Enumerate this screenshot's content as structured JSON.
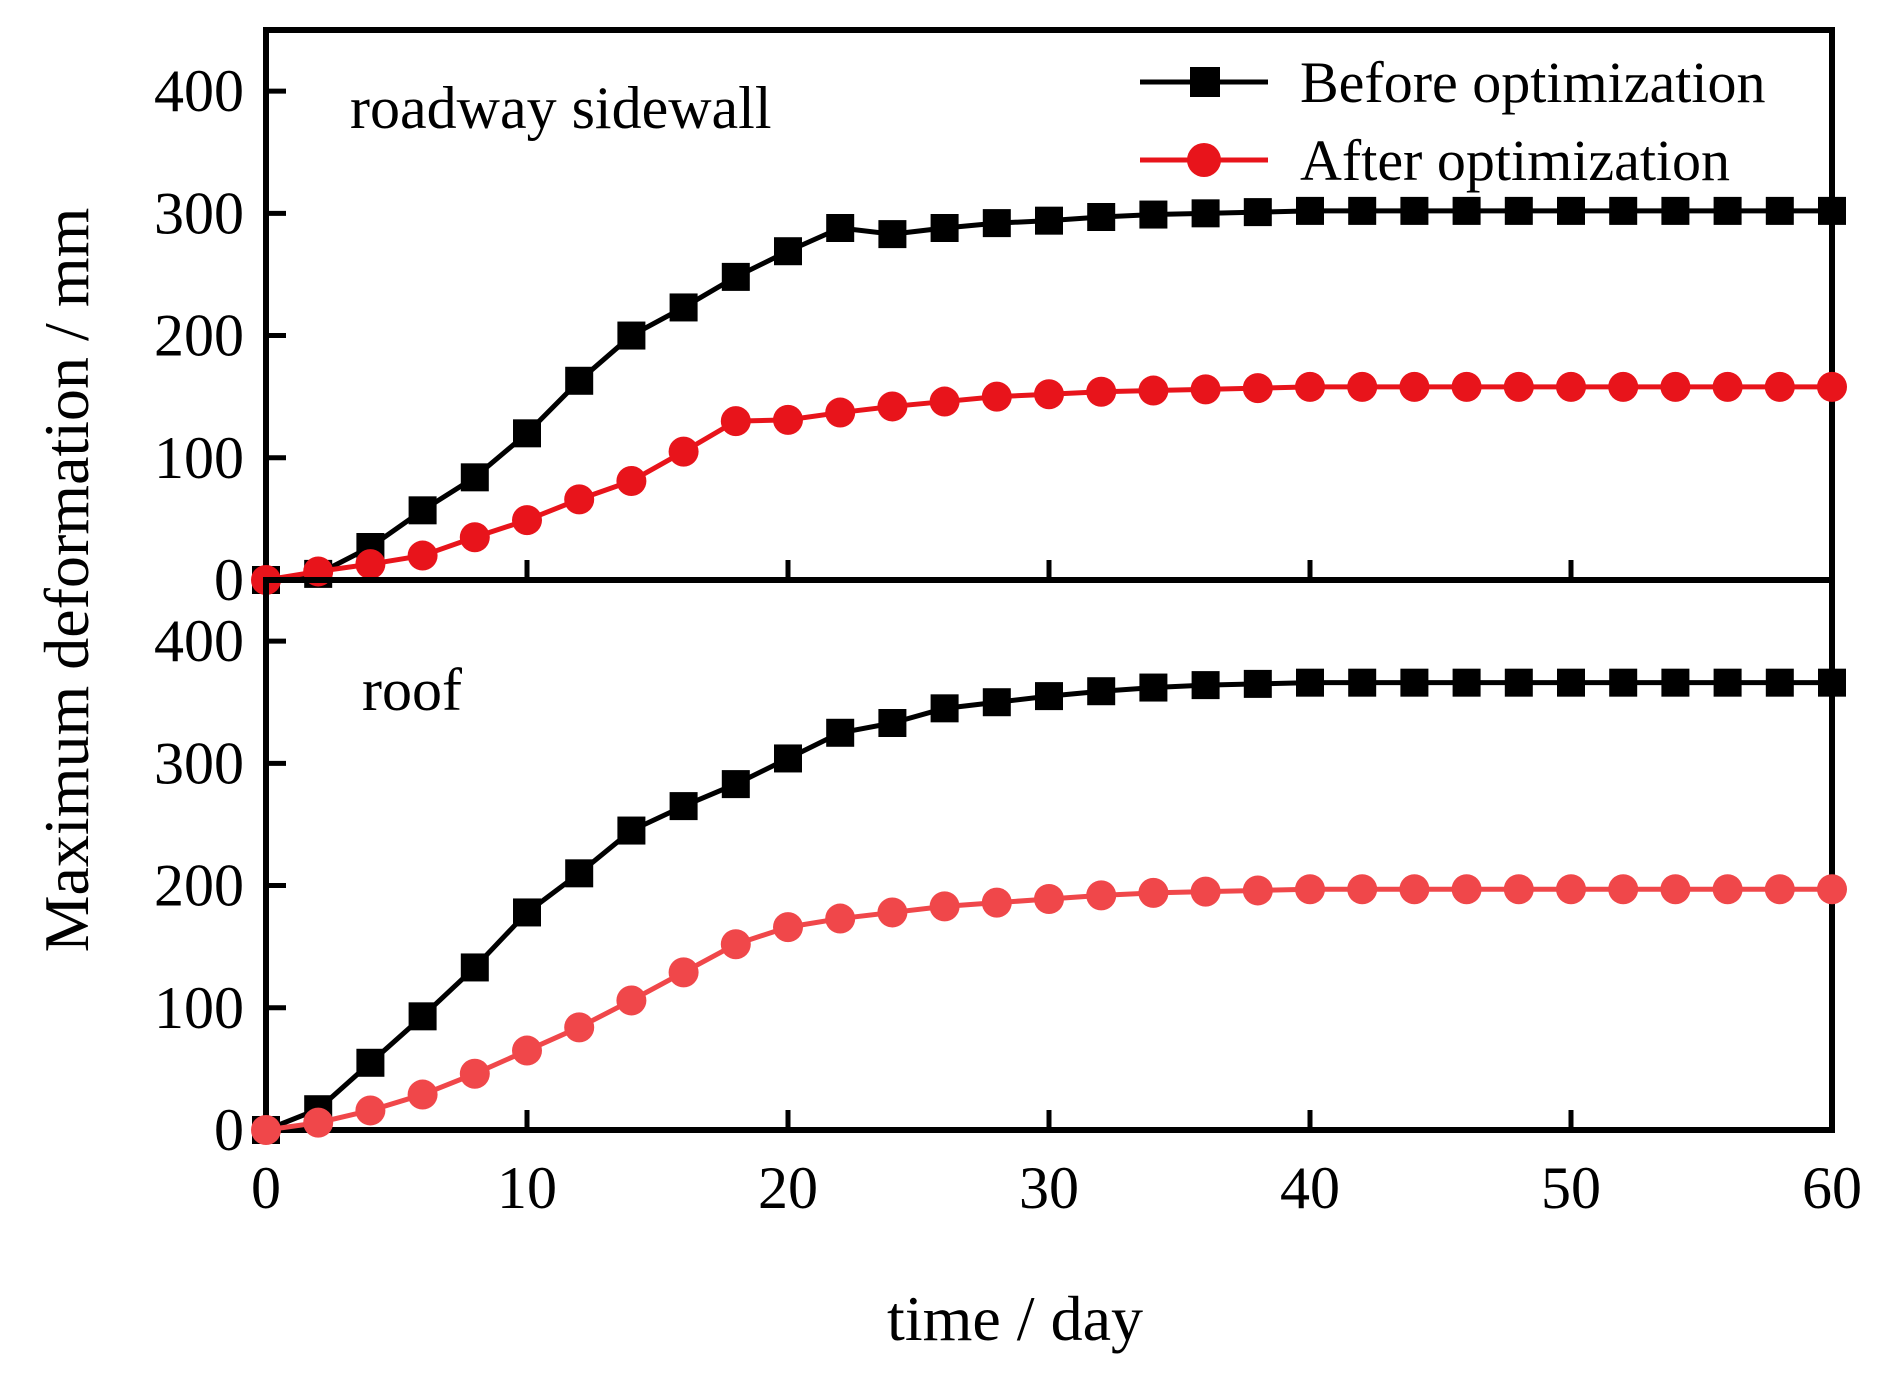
{
  "chart_data": {
    "type": "line",
    "xlabel": "time / day",
    "ylabel": "Maximum deformation / mm",
    "xlim": [
      0,
      60
    ],
    "xticks": [
      0,
      10,
      20,
      30,
      40,
      50,
      60
    ],
    "legend": {
      "placement": "top-right",
      "entries": [
        "Before optimization",
        "After optimization"
      ]
    },
    "colors": {
      "before": "#000000",
      "after_sidewall": "#e8141b",
      "after_roof": "#f0474a"
    },
    "panels": [
      {
        "label": "roadway sidewall",
        "ylim": [
          0,
          450
        ],
        "yticks": [
          0,
          100,
          200,
          300,
          400
        ],
        "x": [
          0,
          2,
          4,
          6,
          8,
          10,
          12,
          14,
          16,
          18,
          20,
          22,
          24,
          26,
          28,
          30,
          32,
          34,
          36,
          38,
          40,
          42,
          44,
          46,
          48,
          50,
          52,
          54,
          56,
          58,
          60
        ],
        "series": [
          {
            "name": "Before optimization",
            "values": [
              0,
              5,
              27,
              57,
              84,
              120,
              163,
              200,
              223,
              248,
              269,
              288,
              283,
              288,
              292,
              294,
              297,
              299,
              300,
              301,
              302,
              302,
              302,
              302,
              302,
              302,
              302,
              302,
              302,
              302,
              302
            ]
          },
          {
            "name": "After optimization",
            "values": [
              0,
              7,
              13,
              20,
              35,
              49,
              66,
              81,
              105,
              130,
              131,
              137,
              142,
              146,
              150,
              152,
              154,
              155,
              156,
              157,
              158,
              158,
              158,
              158,
              158,
              158,
              158,
              158,
              158,
              158,
              158
            ]
          }
        ]
      },
      {
        "label": "roof",
        "ylim": [
          0,
          450
        ],
        "yticks": [
          0,
          100,
          200,
          300,
          400
        ],
        "x": [
          0,
          2,
          4,
          6,
          8,
          10,
          12,
          14,
          16,
          18,
          20,
          22,
          24,
          26,
          28,
          30,
          32,
          34,
          36,
          38,
          40,
          42,
          44,
          46,
          48,
          50,
          52,
          54,
          56,
          58,
          60
        ],
        "series": [
          {
            "name": "Before optimization",
            "values": [
              0,
              17,
              55,
              93,
              133,
              178,
              210,
              245,
              265,
              283,
              304,
              325,
              333,
              345,
              350,
              355,
              359,
              362,
              364,
              365,
              366,
              366,
              366,
              366,
              366,
              366,
              366,
              366,
              366,
              366,
              366
            ]
          },
          {
            "name": "After optimization",
            "values": [
              0,
              6,
              16,
              29,
              46,
              65,
              84,
              106,
              129,
              152,
              166,
              173,
              178,
              183,
              186,
              189,
              192,
              194,
              195,
              196,
              197,
              197,
              197,
              197,
              197,
              197,
              197,
              197,
              197,
              197,
              197
            ]
          }
        ]
      }
    ]
  }
}
